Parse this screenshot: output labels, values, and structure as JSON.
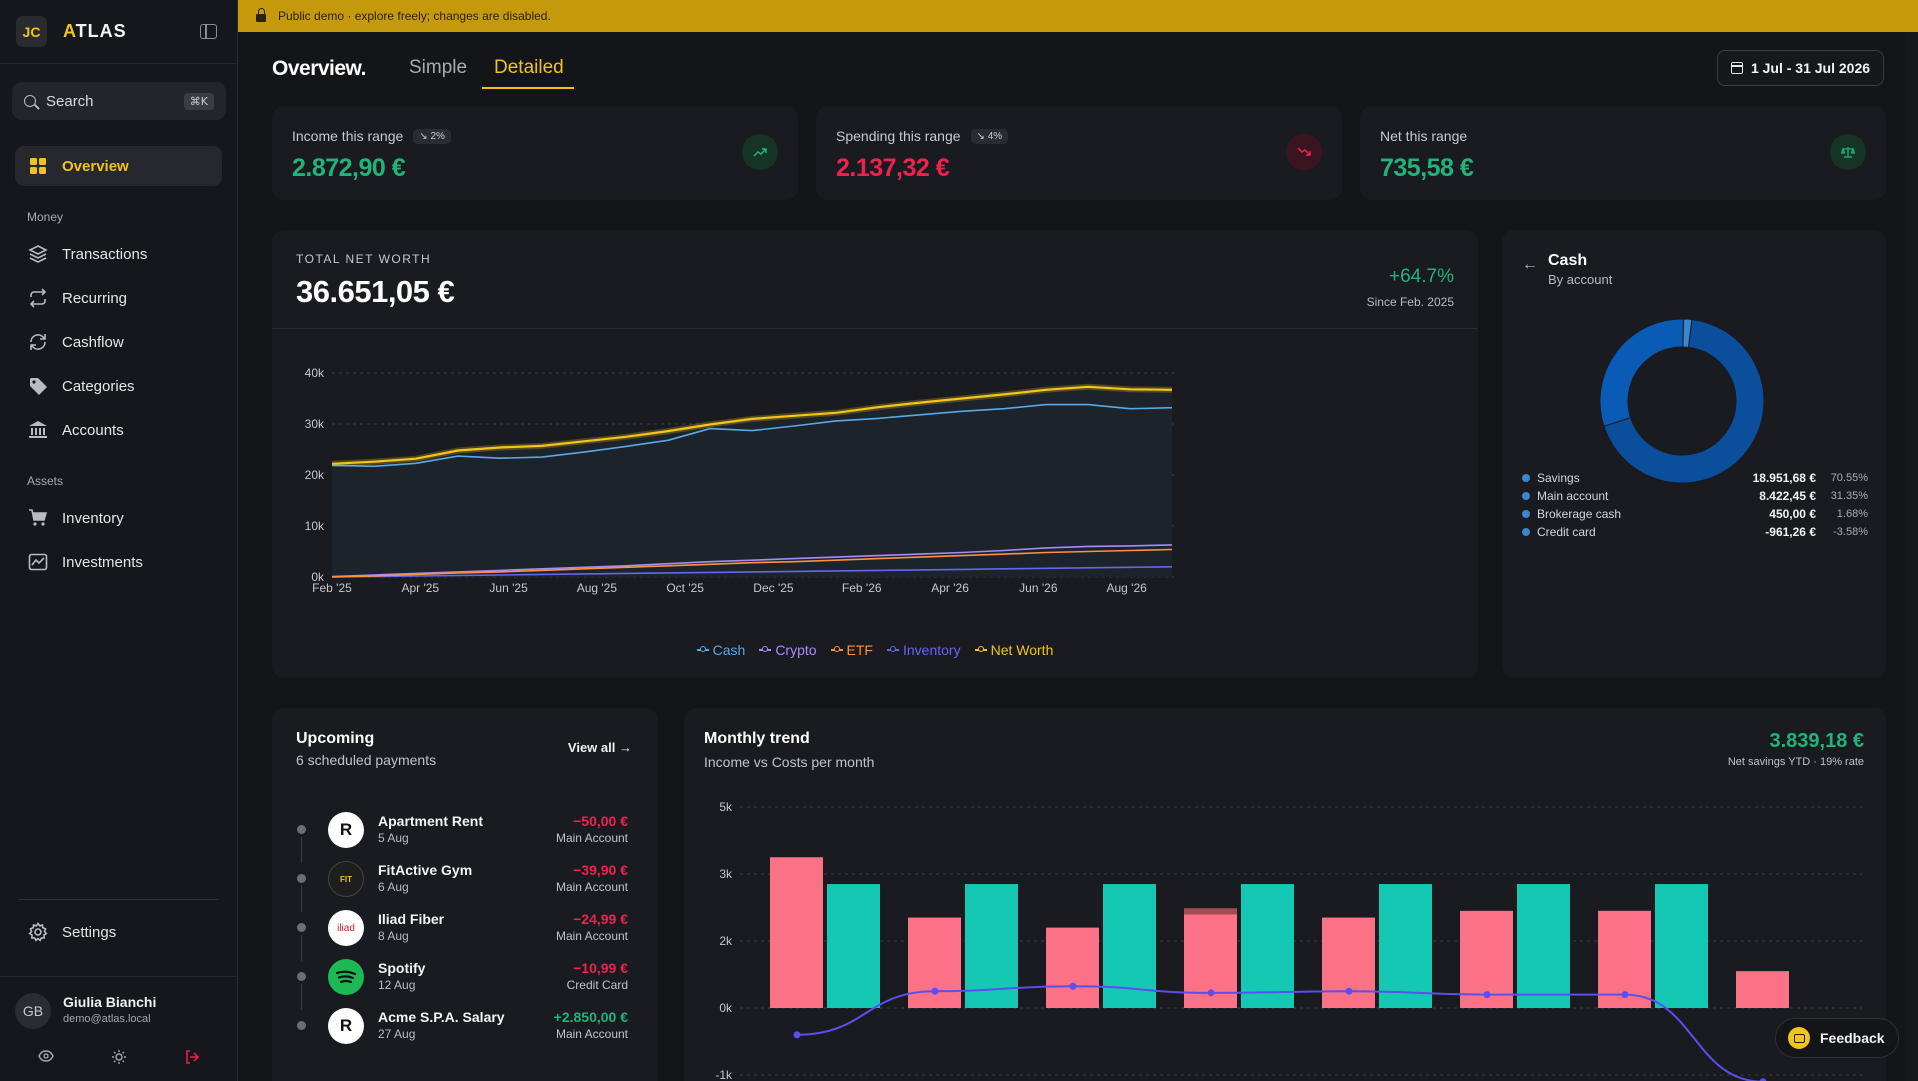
{
  "app": {
    "badge": "JC",
    "name_accent": "A",
    "name_rest": "TLAS"
  },
  "banner": {
    "text": "Public demo · explore freely; changes are disabled."
  },
  "search": {
    "placeholder": "Search",
    "shortcut": "⌘K"
  },
  "nav": {
    "overview": "Overview",
    "money_label": "Money",
    "money": [
      "Transactions",
      "Recurring",
      "Cashflow",
      "Categories",
      "Accounts"
    ],
    "assets_label": "Assets",
    "assets": [
      "Inventory",
      "Investments"
    ],
    "settings": "Settings"
  },
  "user": {
    "initials": "GB",
    "name": "Giulia Bianchi",
    "email": "demo@atlas.local"
  },
  "header": {
    "title": "Overview.",
    "tabs": [
      "Simple",
      "Detailed"
    ],
    "active_tab": "Detailed",
    "date_range": "1 Jul - 31 Jul 2026"
  },
  "stats": [
    {
      "label": "Income this range",
      "badge": "↘ 2%",
      "value": "2.872,90 €",
      "color": "#21b37a"
    },
    {
      "label": "Spending this range",
      "badge": "↘ 4%",
      "value": "2.137,32 €",
      "color": "#f0214f"
    },
    {
      "label": "Net this range",
      "badge": "",
      "value": "735,58 €",
      "color": "#21b37a"
    }
  ],
  "net_worth": {
    "label": "TOTAL NET WORTH",
    "value": "36.651,05 €",
    "change": "+64.7%",
    "since": "Since Feb. 2025",
    "legend": [
      "Cash",
      "Crypto",
      "ETF",
      "Inventory",
      "Net Worth"
    ]
  },
  "chart_data": [
    {
      "type": "area",
      "x_labels": [
        "Feb '25",
        "Apr '25",
        "Jun '25",
        "Aug '25",
        "Oct '25",
        "Dec '25",
        "Feb '26",
        "Apr '26",
        "Jun '26",
        "Aug '26"
      ],
      "y_ticks": [
        "0k",
        "10k",
        "20k",
        "30k",
        "40k"
      ],
      "ylim": [
        0,
        40000
      ],
      "series": [
        {
          "name": "Net Worth",
          "color": "#f5c518",
          "values": [
            22200,
            22600,
            23200,
            24800,
            25400,
            25700,
            26600,
            27500,
            28600,
            29900,
            31000,
            31600,
            32200,
            33300,
            34200,
            35000,
            35800,
            36700,
            37300,
            36800,
            36700
          ]
        },
        {
          "name": "Cash",
          "color": "#5aa9e6",
          "values": [
            21900,
            21700,
            22300,
            23700,
            23300,
            23500,
            24500,
            25600,
            26800,
            29100,
            28700,
            29600,
            30600,
            31100,
            31800,
            32500,
            33000,
            33800,
            33800,
            33000,
            33200
          ]
        },
        {
          "name": "Crypto",
          "color": "#a78bfa",
          "values": [
            100,
            400,
            700,
            1000,
            1300,
            1600,
            1900,
            2200,
            2600,
            3000,
            3300,
            3600,
            3900,
            4200,
            4500,
            4800,
            5200,
            5700,
            6000,
            6100,
            6300
          ]
        },
        {
          "name": "ETF",
          "color": "#fb923c",
          "values": [
            0,
            200,
            500,
            800,
            1000,
            1300,
            1600,
            1900,
            2200,
            2500,
            2800,
            3000,
            3300,
            3600,
            3900,
            4200,
            4500,
            4800,
            5000,
            5200,
            5400
          ]
        },
        {
          "name": "Inventory",
          "color": "#6366f1",
          "values": [
            0,
            100,
            200,
            300,
            400,
            500,
            600,
            700,
            800,
            900,
            1000,
            1100,
            1200,
            1300,
            1400,
            1500,
            1600,
            1700,
            1800,
            1900,
            2000
          ]
        }
      ]
    },
    {
      "type": "pie",
      "title": "Cash",
      "subtitle": "By account",
      "slices": [
        {
          "name": "Savings",
          "amount": "18.951,68 €",
          "pct": "70.55%",
          "value": 70.55,
          "color": "#0b4f9c"
        },
        {
          "name": "Main account",
          "amount": "8.422,45 €",
          "pct": "31.35%",
          "value": 31.35,
          "color": "#0a5bb5"
        },
        {
          "name": "Brokerage cash",
          "amount": "450,00 €",
          "pct": "1.68%",
          "value": 1.68,
          "color": "#3a86cf"
        },
        {
          "name": "Credit card",
          "amount": "-961,26 €",
          "pct": "-3.58%",
          "value": -3.58,
          "color": "#2f74c0"
        }
      ]
    },
    {
      "type": "bar",
      "title": "Monthly trend",
      "subtitle": "Income vs Costs per month",
      "y_ticks": [
        "-1k",
        "0k",
        "2k",
        "3k",
        "5k"
      ],
      "ylim": [
        -1000,
        5000
      ],
      "series": [
        {
          "name": "Costs",
          "color": "#fb7185",
          "values": [
            3250,
            2350,
            2200,
            2400,
            2350,
            2450,
            2450,
            1100
          ]
        },
        {
          "name": "Income",
          "color": "#14c8b4",
          "values": [
            2850,
            2850,
            2850,
            2850,
            2850,
            2850,
            2850,
            null
          ]
        },
        {
          "name": "Net",
          "color": "#5b4ff0",
          "values": [
            -400,
            500,
            650,
            450,
            500,
            400,
            400,
            -1100
          ]
        }
      ]
    }
  ],
  "upcoming": {
    "title": "Upcoming",
    "subtitle": "6 scheduled payments",
    "view_all": "View all",
    "items": [
      {
        "name": "Apartment Rent",
        "date": "5 Aug",
        "amount": "−50,00 €",
        "account": "Main Account",
        "logo": "R"
      },
      {
        "name": "FitActive Gym",
        "date": "6 Aug",
        "amount": "−39,90 €",
        "account": "Main Account",
        "logo": "FIT"
      },
      {
        "name": "Iliad Fiber",
        "date": "8 Aug",
        "amount": "−24,99 €",
        "account": "Main Account",
        "logo": "iliad"
      },
      {
        "name": "Spotify",
        "date": "12 Aug",
        "amount": "−10,99 €",
        "account": "Credit Card",
        "logo": "spotify"
      },
      {
        "name": "Acme S.P.A. Salary",
        "date": "27 Aug",
        "amount": "+2.850,00 €",
        "account": "Main Account",
        "logo": "R"
      }
    ]
  },
  "monthly_trend": {
    "title": "Monthly trend",
    "subtitle": "Income vs Costs per month",
    "value": "3.839,18 €",
    "rate": "Net savings YTD · 19% rate"
  },
  "feedback": {
    "label": "Feedback"
  }
}
